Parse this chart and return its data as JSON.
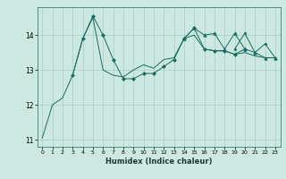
{
  "xlabel": "Humidex (Indice chaleur)",
  "ylabel": "",
  "background_color": "#cce8e0",
  "grid_color": "#aacccc",
  "line_color": "#1a6b60",
  "xlim": [
    -0.5,
    23.5
  ],
  "ylim": [
    10.8,
    14.8
  ],
  "xticks": [
    0,
    1,
    2,
    3,
    4,
    5,
    6,
    7,
    8,
    9,
    10,
    11,
    12,
    13,
    14,
    15,
    16,
    17,
    18,
    19,
    20,
    21,
    22,
    23
  ],
  "yticks": [
    11,
    12,
    13,
    14
  ],
  "series": [
    {
      "x": [
        0,
        1,
        2,
        3,
        4,
        5,
        6,
        7,
        8,
        9,
        10,
        11,
        12,
        13,
        14,
        15,
        16,
        17,
        18,
        19,
        20,
        21,
        22,
        23
      ],
      "y": [
        11.05,
        12.0,
        12.2,
        12.85,
        13.9,
        14.5,
        13.0,
        12.85,
        12.8,
        13.0,
        13.15,
        13.05,
        13.3,
        13.35,
        13.9,
        14.0,
        13.6,
        13.55,
        13.55,
        13.45,
        13.5,
        13.4,
        13.35,
        13.35
      ],
      "marker": null,
      "markersize": 0
    },
    {
      "x": [
        3,
        4,
        5,
        6,
        7,
        8,
        9,
        10,
        11,
        12,
        13,
        14,
        15,
        16,
        17,
        18,
        19,
        20
      ],
      "y": [
        12.85,
        13.9,
        14.55,
        14.0,
        13.3,
        12.75,
        12.75,
        12.9,
        12.9,
        13.1,
        13.3,
        13.9,
        14.2,
        13.6,
        13.55,
        13.55,
        13.45,
        13.6
      ],
      "marker": "D",
      "markersize": 2.0
    },
    {
      "x": [
        14,
        15,
        16,
        17,
        18,
        19,
        20,
        21,
        22,
        23
      ],
      "y": [
        13.9,
        14.2,
        14.0,
        14.05,
        13.6,
        14.05,
        13.6,
        13.5,
        13.35,
        13.35
      ],
      "marker": "^",
      "markersize": 2.5
    },
    {
      "x": [
        19,
        20,
        21,
        22,
        23
      ],
      "y": [
        13.6,
        14.05,
        13.5,
        13.75,
        13.35
      ],
      "marker": "D",
      "markersize": 1.5
    }
  ]
}
